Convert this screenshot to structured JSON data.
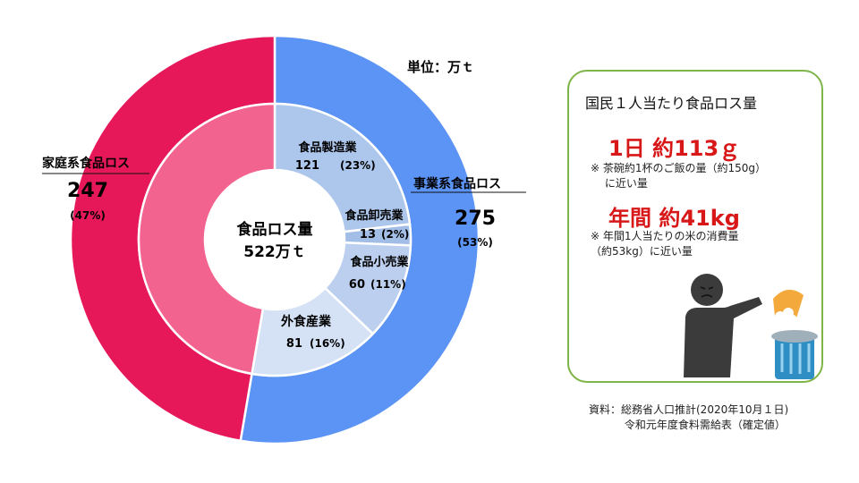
{
  "chart_data": {
    "type": "pie",
    "subtype": "nested-donut",
    "unit_label": "単位：万ｔ",
    "center_label": {
      "line1": "食品ロス量",
      "line2": "522万ｔ"
    },
    "total": 522,
    "outer": [
      {
        "name": "事業系食品ロス",
        "value": 275,
        "percent": "(53%)"
      },
      {
        "name": "家庭系食品ロス",
        "value": 247,
        "percent": "(47%)"
      }
    ],
    "inner": [
      {
        "name": "食品製造業",
        "value": 121,
        "percent": "(23%)"
      },
      {
        "name": "食品卸売業",
        "value": 13,
        "percent": "(2%)"
      },
      {
        "name": "食品小売業",
        "value": 60,
        "percent": "(11%)"
      },
      {
        "name": "外食産業",
        "value": 81,
        "percent": "(16%)"
      },
      {
        "name": "家庭系食品ロス",
        "value": 247,
        "percent": "(47%)"
      }
    ]
  },
  "colors": {
    "household_outer": "#e6185a",
    "household_inner": "#f2638f",
    "business_outer": "#5b94f5",
    "manufacturing": "#adc6ec",
    "wholesale": "#a2bde6",
    "retail": "#bccfee",
    "food_service": "#d5e2f6",
    "panel_border": "#7fb548",
    "highlight_red": "#d81818"
  },
  "panel": {
    "title": "国民１人当たり食品ロス量",
    "daily_value": "1日 約113ｇ",
    "daily_note": "※ 茶碗約1杯のご飯の量（約150g）\n　 に近い量",
    "yearly_value": "年間 約41kg",
    "yearly_note": "※ 年間1人当たりの米の消費量\n（約53kg）に近い量"
  },
  "source": "資料：総務省人口推計(2020年10月１日)\n　　　 令和元年度食料需給表（確定値）"
}
